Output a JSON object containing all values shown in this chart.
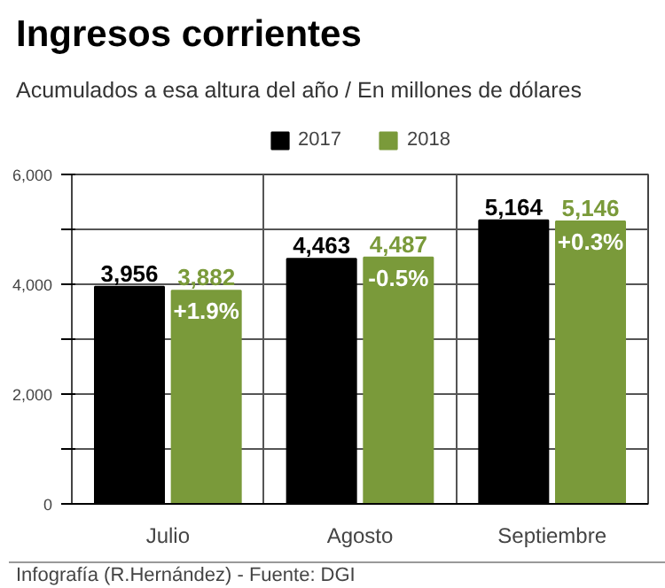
{
  "chart_data": {
    "type": "bar",
    "title": "Ingresos corrientes",
    "subtitle": "Acumulados a esa altura del año / En millones de dólares",
    "categories": [
      "Julio",
      "Agosto",
      "Septiembre"
    ],
    "series": [
      {
        "name": "2017",
        "color": "#000000",
        "values": [
          3956,
          4463,
          5164
        ],
        "value_labels": [
          "3,956",
          "4,463",
          "5,164"
        ]
      },
      {
        "name": "2018",
        "color": "#7a9a3a",
        "values": [
          3882,
          4487,
          5146
        ],
        "value_labels": [
          "3,882",
          "4,487",
          "5,146"
        ]
      }
    ],
    "ylim": [
      0,
      6000
    ],
    "yticks": [
      0,
      {
        "value": 1000,
        "label": null
      },
      {
        "value": 2000,
        "label": "2,000"
      },
      {
        "value": 3000,
        "label": null
      },
      {
        "value": 4000,
        "label": "4,000"
      },
      {
        "value": 5000,
        "label": null
      },
      {
        "value": 6000,
        "label": "6,000"
      }
    ],
    "grid": true,
    "legend": "top",
    "annotations": [
      {
        "text": "+1.9%",
        "x": "Julio",
        "y": 3882
      },
      {
        "text": "-0.5%",
        "x": "Agosto",
        "y": 4487
      },
      {
        "text": "+0.3%",
        "x": "Septiembre",
        "y": 5146
      },
      "Infografía (R.Hernández) - Fuente: DGI"
    ]
  }
}
